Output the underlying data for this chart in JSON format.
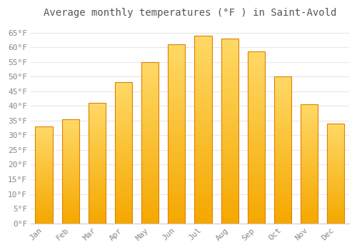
{
  "title": "Average monthly temperatures (°F ) in Saint-Avold",
  "months": [
    "Jan",
    "Feb",
    "Mar",
    "Apr",
    "May",
    "Jun",
    "Jul",
    "Aug",
    "Sep",
    "Oct",
    "Nov",
    "Dec"
  ],
  "values": [
    33,
    35.5,
    41,
    48,
    55,
    61,
    64,
    63,
    58.5,
    50,
    40.5,
    34
  ],
  "bar_color_bottom": "#F5A800",
  "bar_color_top": "#FFD966",
  "ylim": [
    0,
    68
  ],
  "yticks": [
    0,
    5,
    10,
    15,
    20,
    25,
    30,
    35,
    40,
    45,
    50,
    55,
    60,
    65
  ],
  "ytick_labels": [
    "0°F",
    "5°F",
    "10°F",
    "15°F",
    "20°F",
    "25°F",
    "30°F",
    "35°F",
    "40°F",
    "45°F",
    "50°F",
    "55°F",
    "60°F",
    "65°F"
  ],
  "background_color": "#ffffff",
  "grid_color": "#e8e8e8",
  "title_fontsize": 10,
  "tick_fontsize": 8,
  "bar_edge_color": "#E08000",
  "bar_width": 0.65
}
